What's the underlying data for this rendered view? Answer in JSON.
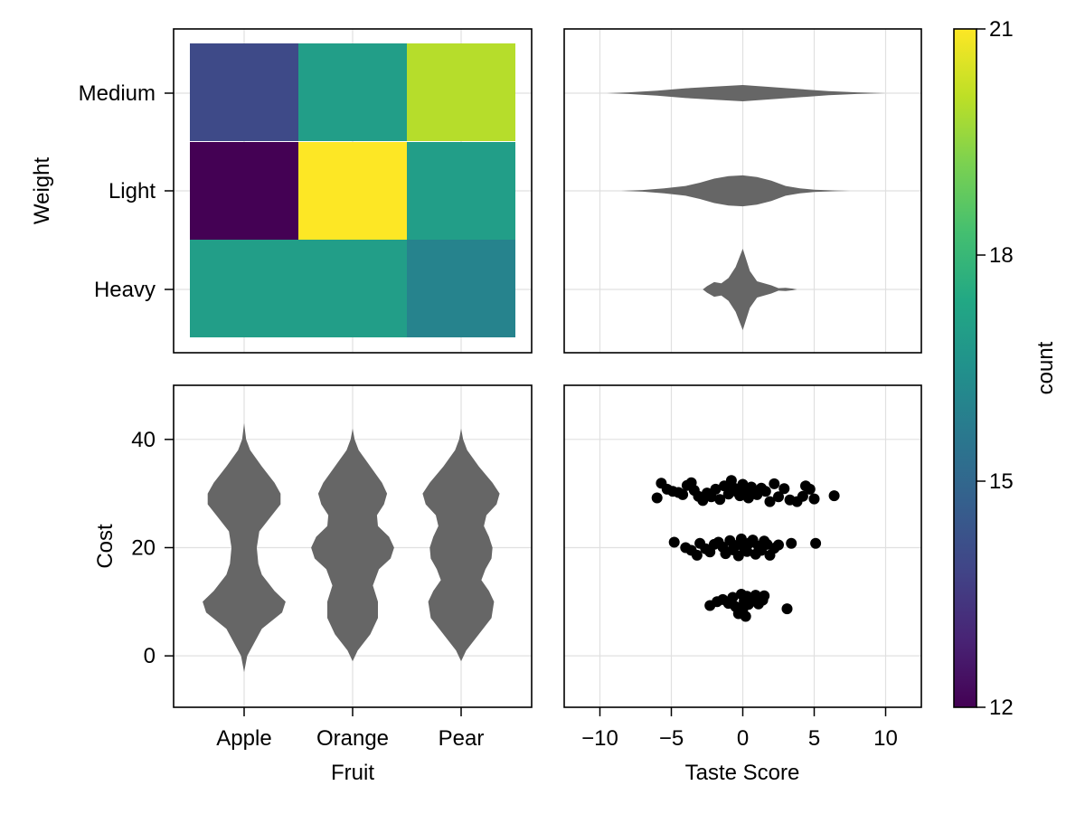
{
  "chart_data": [
    {
      "type": "heatmap",
      "x_categories": [
        "Apple",
        "Orange",
        "Pear"
      ],
      "y_categories": [
        "Heavy",
        "Light",
        "Medium"
      ],
      "ylabel": "Weight",
      "values": [
        [
          17,
          17,
          16
        ],
        [
          12,
          21,
          17
        ],
        [
          14,
          17,
          20
        ]
      ],
      "colormap": "viridis",
      "grid": true
    },
    {
      "type": "violin",
      "orientation": "horizontal",
      "categories": [
        "Heavy",
        "Light",
        "Medium"
      ],
      "x_ticks": [
        -10,
        -5,
        0,
        5,
        10
      ],
      "xlim": [
        -12.5,
        12.5
      ],
      "violins": [
        {
          "category": "Heavy",
          "profile": [
            [
              -2.8,
              0
            ],
            [
              -2.5,
              0.08
            ],
            [
              -2.0,
              0.18
            ],
            [
              -1.5,
              0.15
            ],
            [
              -1.0,
              0.28
            ],
            [
              -0.5,
              0.55
            ],
            [
              0,
              1.0
            ],
            [
              0.5,
              0.45
            ],
            [
              1.0,
              0.2
            ],
            [
              1.5,
              0.15
            ],
            [
              2.0,
              0.1
            ],
            [
              2.5,
              0.03
            ],
            [
              3.0,
              0.04
            ],
            [
              3.5,
              0.02
            ],
            [
              3.8,
              0
            ]
          ]
        },
        {
          "category": "Light",
          "profile": [
            [
              -8.5,
              0
            ],
            [
              -7,
              0.02
            ],
            [
              -5.5,
              0.06
            ],
            [
              -4,
              0.12
            ],
            [
              -3,
              0.2
            ],
            [
              -2,
              0.3
            ],
            [
              -1,
              0.36
            ],
            [
              0,
              0.38
            ],
            [
              1,
              0.34
            ],
            [
              2,
              0.25
            ],
            [
              3,
              0.12
            ],
            [
              4,
              0.06
            ],
            [
              5,
              0.03
            ],
            [
              6.5,
              0.01
            ],
            [
              7.5,
              0
            ]
          ]
        },
        {
          "category": "Medium",
          "profile": [
            [
              -9.5,
              0
            ],
            [
              -8,
              0.02
            ],
            [
              -6,
              0.06
            ],
            [
              -4,
              0.12
            ],
            [
              -2,
              0.16
            ],
            [
              0,
              0.2
            ],
            [
              2,
              0.15
            ],
            [
              4,
              0.1
            ],
            [
              6,
              0.05
            ],
            [
              8,
              0.02
            ],
            [
              10,
              0
            ]
          ]
        }
      ],
      "grid": true
    },
    {
      "type": "violin",
      "orientation": "vertical",
      "categories": [
        "Apple",
        "Orange",
        "Pear"
      ],
      "xlabel": "Fruit",
      "ylabel": "Cost",
      "y_ticks": [
        0,
        20,
        40
      ],
      "ylim": [
        -9.5,
        50
      ],
      "violins": [
        {
          "category": "Apple",
          "profile": [
            [
              -3,
              0
            ],
            [
              0,
              0.06
            ],
            [
              5,
              0.35
            ],
            [
              8,
              0.75
            ],
            [
              10,
              0.82
            ],
            [
              12,
              0.6
            ],
            [
              15,
              0.35
            ],
            [
              17,
              0.28
            ],
            [
              20,
              0.25
            ],
            [
              23,
              0.3
            ],
            [
              26,
              0.55
            ],
            [
              28,
              0.72
            ],
            [
              30,
              0.72
            ],
            [
              32,
              0.6
            ],
            [
              35,
              0.35
            ],
            [
              38,
              0.12
            ],
            [
              40,
              0.04
            ],
            [
              43,
              0
            ]
          ]
        },
        {
          "category": "Orange",
          "profile": [
            [
              -1,
              0
            ],
            [
              1,
              0.1
            ],
            [
              4,
              0.35
            ],
            [
              7,
              0.5
            ],
            [
              10,
              0.5
            ],
            [
              13,
              0.4
            ],
            [
              16,
              0.52
            ],
            [
              18,
              0.75
            ],
            [
              20,
              0.82
            ],
            [
              22,
              0.72
            ],
            [
              24,
              0.5
            ],
            [
              26,
              0.48
            ],
            [
              28,
              0.62
            ],
            [
              30,
              0.68
            ],
            [
              32,
              0.58
            ],
            [
              35,
              0.35
            ],
            [
              38,
              0.12
            ],
            [
              40,
              0.04
            ],
            [
              42,
              0
            ]
          ]
        },
        {
          "category": "Pear",
          "profile": [
            [
              -1,
              0
            ],
            [
              1,
              0.1
            ],
            [
              4,
              0.35
            ],
            [
              7,
              0.6
            ],
            [
              10,
              0.65
            ],
            [
              12,
              0.55
            ],
            [
              14,
              0.4
            ],
            [
              16,
              0.48
            ],
            [
              18,
              0.6
            ],
            [
              20,
              0.62
            ],
            [
              22,
              0.55
            ],
            [
              24,
              0.45
            ],
            [
              26,
              0.5
            ],
            [
              28,
              0.7
            ],
            [
              30,
              0.76
            ],
            [
              32,
              0.62
            ],
            [
              35,
              0.35
            ],
            [
              38,
              0.12
            ],
            [
              40,
              0.04
            ],
            [
              42,
              0
            ]
          ]
        }
      ],
      "grid": true
    },
    {
      "type": "scatter",
      "xlabel": "Taste Score",
      "x_ticks": [
        -10,
        -5,
        0,
        5,
        10
      ],
      "xlim": [
        -12.5,
        12.5
      ],
      "ylim": [
        -9.5,
        50
      ],
      "points": [
        [
          -6.0,
          29.2
        ],
        [
          -5.7,
          31.9
        ],
        [
          -5.3,
          30.8
        ],
        [
          -4.9,
          30.4
        ],
        [
          -4.5,
          30.2
        ],
        [
          -4.2,
          29.8
        ],
        [
          -3.9,
          31.5
        ],
        [
          -3.6,
          32.0
        ],
        [
          -3.4,
          30.6
        ],
        [
          -3.1,
          29.5
        ],
        [
          -2.8,
          28.7
        ],
        [
          -2.5,
          30.1
        ],
        [
          -2.2,
          29.4
        ],
        [
          -1.9,
          30.8
        ],
        [
          -1.6,
          28.9
        ],
        [
          -1.3,
          31.4
        ],
        [
          -1.0,
          29.9
        ],
        [
          -0.8,
          32.4
        ],
        [
          -0.6,
          31.0
        ],
        [
          -0.4,
          30.3
        ],
        [
          -0.2,
          29.6
        ],
        [
          0.0,
          31.7
        ],
        [
          0.2,
          30.5
        ],
        [
          0.4,
          29.2
        ],
        [
          0.6,
          31.2
        ],
        [
          0.8,
          30.0
        ],
        [
          1.0,
          29.8
        ],
        [
          1.3,
          31.0
        ],
        [
          1.6,
          30.4
        ],
        [
          1.9,
          28.5
        ],
        [
          2.2,
          31.8
        ],
        [
          2.5,
          29.4
        ],
        [
          2.9,
          30.9
        ],
        [
          3.3,
          28.8
        ],
        [
          3.8,
          28.5
        ],
        [
          4.2,
          29.5
        ],
        [
          4.4,
          31.4
        ],
        [
          4.7,
          30.8
        ],
        [
          5.0,
          29.0
        ],
        [
          6.4,
          29.6
        ],
        [
          -4.8,
          21.0
        ],
        [
          -4.0,
          20.0
        ],
        [
          -3.6,
          19.5
        ],
        [
          -3.2,
          18.6
        ],
        [
          -3.0,
          20.8
        ],
        [
          -2.6,
          19.8
        ],
        [
          -2.3,
          19.2
        ],
        [
          -2.0,
          20.6
        ],
        [
          -1.7,
          21.0
        ],
        [
          -1.4,
          20.1
        ],
        [
          -1.2,
          18.9
        ],
        [
          -0.9,
          21.3
        ],
        [
          -0.7,
          19.6
        ],
        [
          -0.5,
          20.4
        ],
        [
          -0.3,
          18.5
        ],
        [
          -0.1,
          21.6
        ],
        [
          0.1,
          20.0
        ],
        [
          0.3,
          19.3
        ],
        [
          0.5,
          20.9
        ],
        [
          0.7,
          21.4
        ],
        [
          0.9,
          18.8
        ],
        [
          1.1,
          20.3
        ],
        [
          1.3,
          19.5
        ],
        [
          1.5,
          21.2
        ],
        [
          1.7,
          20.6
        ],
        [
          1.9,
          18.6
        ],
        [
          2.2,
          19.9
        ],
        [
          2.5,
          20.5
        ],
        [
          3.4,
          20.8
        ],
        [
          5.1,
          20.8
        ],
        [
          -2.3,
          9.3
        ],
        [
          -1.8,
          10.0
        ],
        [
          -1.4,
          10.4
        ],
        [
          -1.0,
          9.7
        ],
        [
          -0.7,
          10.8
        ],
        [
          -0.5,
          9.1
        ],
        [
          -0.3,
          7.8
        ],
        [
          -0.1,
          11.4
        ],
        [
          0.0,
          8.6
        ],
        [
          0.1,
          10.1
        ],
        [
          0.2,
          7.3
        ],
        [
          0.3,
          11.0
        ],
        [
          0.4,
          9.5
        ],
        [
          0.6,
          10.5
        ],
        [
          0.9,
          11.2
        ],
        [
          1.1,
          9.6
        ],
        [
          1.4,
          10.3
        ],
        [
          1.5,
          11.1
        ],
        [
          3.1,
          8.7
        ]
      ],
      "grid": true
    },
    {
      "type": "colorbar",
      "label": "count",
      "ticks": [
        12,
        15,
        18,
        21
      ],
      "range": [
        12,
        21
      ],
      "colormap": "viridis"
    }
  ],
  "colors": {
    "violin_fill": "#666666",
    "scatter_marker": "#000000",
    "grid": "#e0e0e0",
    "frame": "#000000"
  }
}
